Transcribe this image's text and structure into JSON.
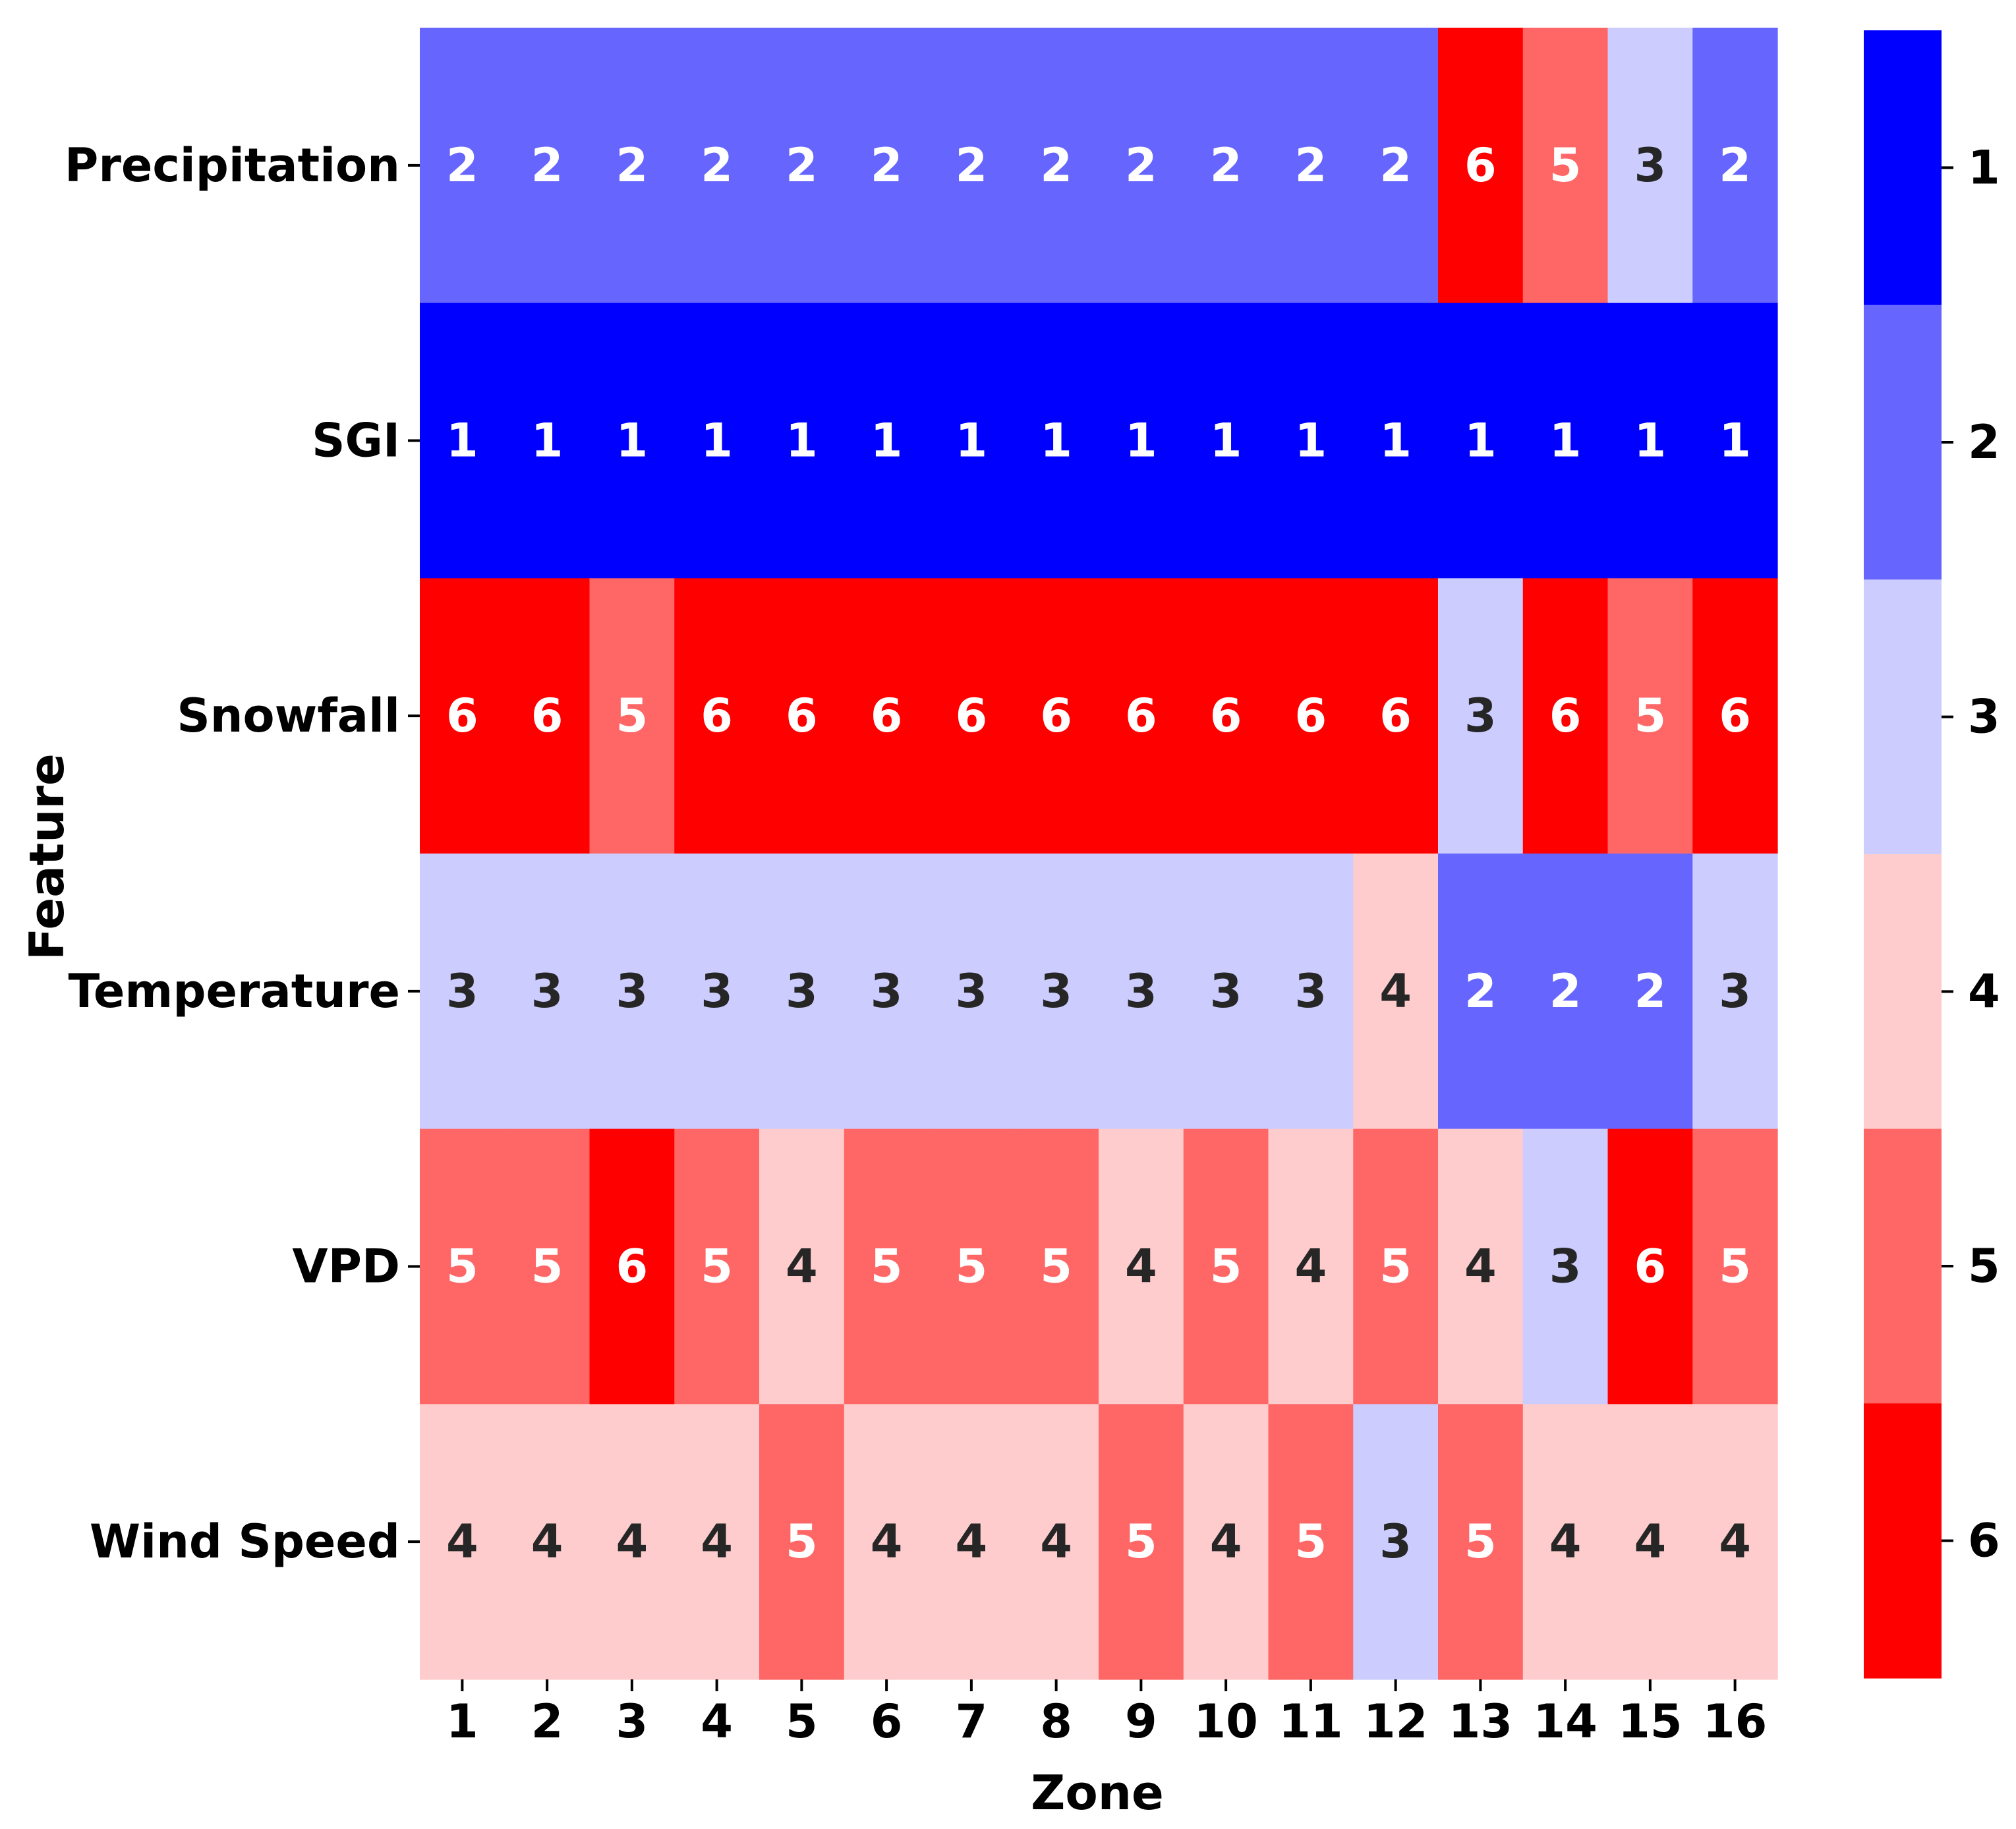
{
  "chart_data": {
    "type": "heatmap",
    "xlabel": "Zone",
    "ylabel": "Feature",
    "categories": [
      "1",
      "2",
      "3",
      "4",
      "5",
      "6",
      "7",
      "8",
      "9",
      "10",
      "11",
      "12",
      "13",
      "14",
      "15",
      "16"
    ],
    "rows": [
      "Precipitation",
      "SGI",
      "Snowfall",
      "Temperature",
      "VPD",
      "Wind Speed"
    ],
    "values": [
      [
        2,
        2,
        2,
        2,
        2,
        2,
        2,
        2,
        2,
        2,
        2,
        2,
        6,
        5,
        3,
        2
      ],
      [
        1,
        1,
        1,
        1,
        1,
        1,
        1,
        1,
        1,
        1,
        1,
        1,
        1,
        1,
        1,
        1
      ],
      [
        6,
        6,
        5,
        6,
        6,
        6,
        6,
        6,
        6,
        6,
        6,
        6,
        3,
        6,
        5,
        6
      ],
      [
        3,
        3,
        3,
        3,
        3,
        3,
        3,
        3,
        3,
        3,
        3,
        4,
        2,
        2,
        2,
        3
      ],
      [
        5,
        5,
        6,
        5,
        4,
        5,
        5,
        5,
        4,
        5,
        4,
        5,
        4,
        3,
        6,
        5
      ],
      [
        4,
        4,
        4,
        4,
        5,
        4,
        4,
        4,
        5,
        4,
        5,
        3,
        5,
        4,
        4,
        4
      ]
    ],
    "colorbar": {
      "ticks": [
        "1",
        "2",
        "3",
        "4",
        "5",
        "6"
      ],
      "colors": {
        "1": "#0000ff",
        "2": "#6666ff",
        "3": "#ccccfe",
        "4": "#fecccc",
        "5": "#ff6666",
        "6": "#ff0000"
      }
    },
    "annotation_colors": {
      "light": "#ffffff",
      "dark": "#262626"
    }
  }
}
